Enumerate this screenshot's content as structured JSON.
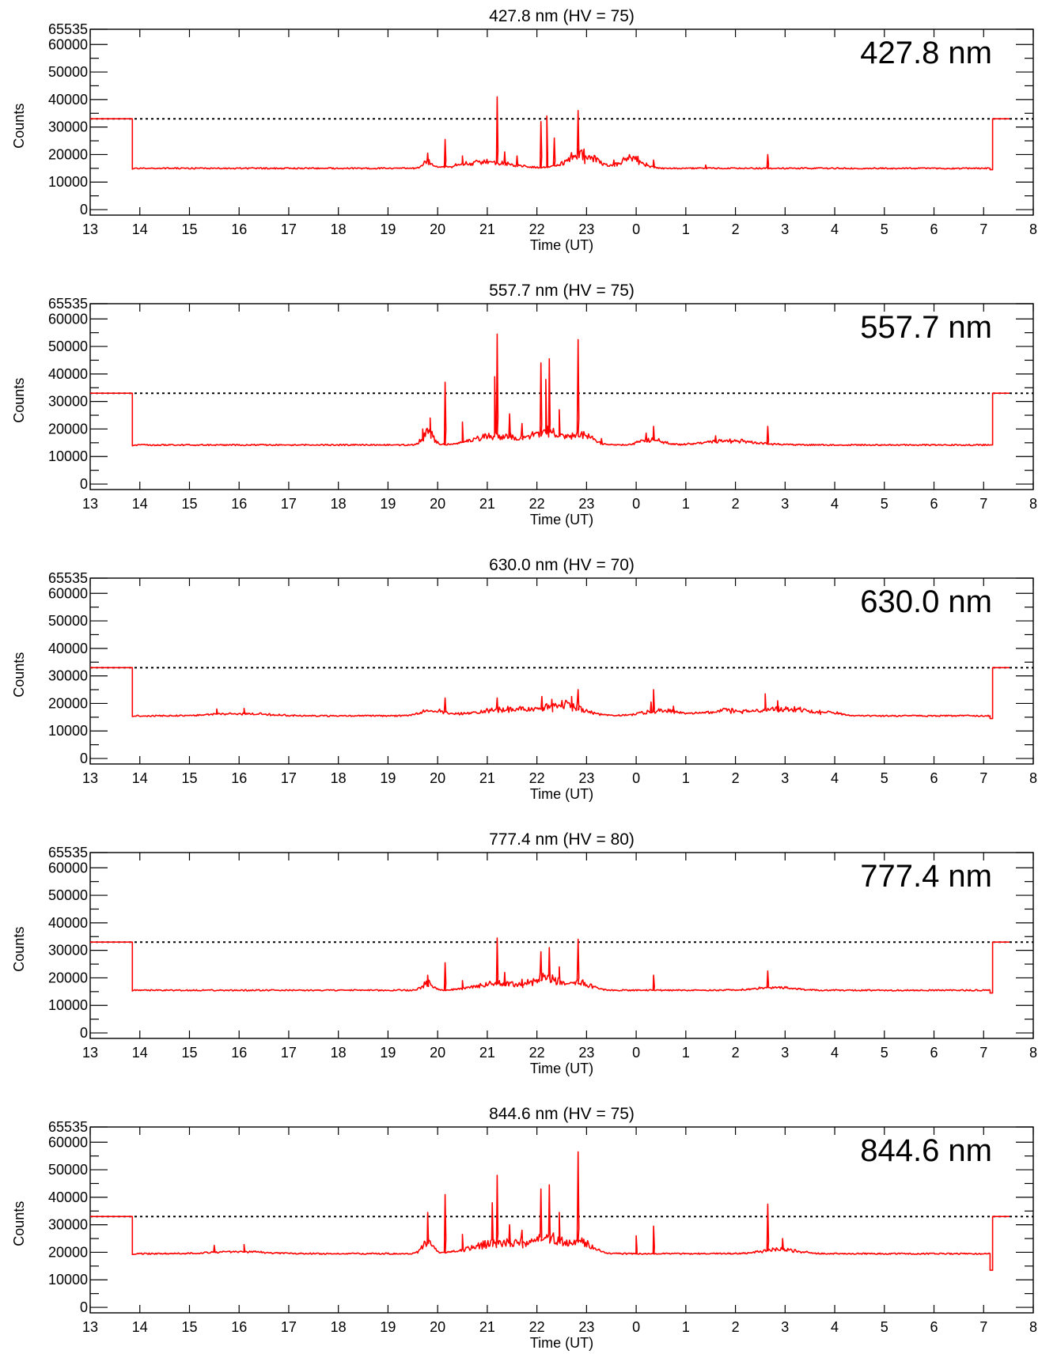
{
  "chart_data": [
    {
      "type": "line",
      "title": "427.8 nm (HV = 75)",
      "label": "427.8 nm",
      "xlabel": "Time (UT)",
      "ylabel": "Counts",
      "x_tick_labels": [
        "13",
        "14",
        "15",
        "16",
        "17",
        "18",
        "19",
        "20",
        "21",
        "22",
        "23",
        "0",
        "1",
        "2",
        "3",
        "4",
        "5",
        "6",
        "7",
        "8"
      ],
      "y_tick_values": [
        0,
        10000,
        20000,
        30000,
        40000,
        50000,
        60000,
        65535
      ],
      "y_tick_labels": [
        "0",
        "10000",
        "20000",
        "30000",
        "40000",
        "50000",
        "60000",
        "65535"
      ],
      "xlim_hours_since_13UT": [
        0,
        19
      ],
      "ylim": [
        -2000,
        65535
      ],
      "threshold": 33000,
      "series_color": "#ff0000",
      "baseline": 15000,
      "data_start": 0.85,
      "data_end": 18.18,
      "edge_level": 33000,
      "end_dip": 14500,
      "bumps": [
        {
          "x": 6.8,
          "w": 0.12,
          "v": 2500
        },
        {
          "x": 8.0,
          "w": 0.7,
          "v": 2300
        },
        {
          "x": 9.9,
          "w": 0.4,
          "v": 5000
        },
        {
          "x": 10.9,
          "w": 0.3,
          "v": 3500
        }
      ],
      "spikes": [
        {
          "x": 6.8,
          "v": 20500
        },
        {
          "x": 7.15,
          "v": 25500
        },
        {
          "x": 7.5,
          "v": 19500
        },
        {
          "x": 8.2,
          "v": 41000
        },
        {
          "x": 8.35,
          "v": 21000
        },
        {
          "x": 8.6,
          "v": 19500
        },
        {
          "x": 9.08,
          "v": 32000
        },
        {
          "x": 9.2,
          "v": 34000
        },
        {
          "x": 9.35,
          "v": 26000
        },
        {
          "x": 9.83,
          "v": 36000
        },
        {
          "x": 9.95,
          "v": 22000
        },
        {
          "x": 10.55,
          "v": 18000
        },
        {
          "x": 11.35,
          "v": 18000
        },
        {
          "x": 12.4,
          "v": 16200
        },
        {
          "x": 13.65,
          "v": 20000
        }
      ]
    },
    {
      "type": "line",
      "title": "557.7 nm (HV = 75)",
      "label": "557.7 nm",
      "xlabel": "Time (UT)",
      "ylabel": "Counts",
      "x_tick_labels": [
        "13",
        "14",
        "15",
        "16",
        "17",
        "18",
        "19",
        "20",
        "21",
        "22",
        "23",
        "0",
        "1",
        "2",
        "3",
        "4",
        "5",
        "6",
        "7",
        "8"
      ],
      "y_tick_values": [
        0,
        10000,
        20000,
        30000,
        40000,
        50000,
        60000,
        65535
      ],
      "y_tick_labels": [
        "0",
        "10000",
        "20000",
        "30000",
        "40000",
        "50000",
        "60000",
        "65535"
      ],
      "xlim_hours_since_13UT": [
        0,
        19
      ],
      "ylim": [
        -2000,
        65535
      ],
      "threshold": 33000,
      "series_color": "#ff0000",
      "baseline": 14200,
      "data_start": 0.85,
      "data_end": 18.18,
      "edge_level": 33000,
      "end_dip": 14200,
      "bumps": [
        {
          "x": 6.8,
          "w": 0.15,
          "v": 4500
        },
        {
          "x": 8.2,
          "w": 0.6,
          "v": 3500
        },
        {
          "x": 9.2,
          "w": 0.4,
          "v": 4500
        },
        {
          "x": 9.9,
          "w": 0.3,
          "v": 3500
        },
        {
          "x": 11.3,
          "w": 0.3,
          "v": 2000
        },
        {
          "x": 12.9,
          "w": 0.7,
          "v": 1500
        }
      ],
      "spikes": [
        {
          "x": 6.7,
          "v": 20000
        },
        {
          "x": 6.85,
          "v": 24000
        },
        {
          "x": 7.15,
          "v": 37000
        },
        {
          "x": 7.5,
          "v": 22500
        },
        {
          "x": 8.15,
          "v": 39000
        },
        {
          "x": 8.2,
          "v": 54500
        },
        {
          "x": 8.45,
          "v": 25500
        },
        {
          "x": 8.7,
          "v": 22000
        },
        {
          "x": 9.08,
          "v": 44000
        },
        {
          "x": 9.18,
          "v": 38000
        },
        {
          "x": 9.25,
          "v": 45500
        },
        {
          "x": 9.45,
          "v": 27000
        },
        {
          "x": 9.83,
          "v": 52500
        },
        {
          "x": 10.3,
          "v": 16500
        },
        {
          "x": 11.2,
          "v": 18500
        },
        {
          "x": 11.35,
          "v": 21000
        },
        {
          "x": 12.6,
          "v": 17500
        },
        {
          "x": 13.65,
          "v": 21000
        }
      ]
    },
    {
      "type": "line",
      "title": "630.0 nm (HV = 70)",
      "label": "630.0 nm",
      "xlabel": "Time (UT)",
      "ylabel": "Counts",
      "x_tick_labels": [
        "13",
        "14",
        "15",
        "16",
        "17",
        "18",
        "19",
        "20",
        "21",
        "22",
        "23",
        "0",
        "1",
        "2",
        "3",
        "4",
        "5",
        "6",
        "7",
        "8"
      ],
      "y_tick_values": [
        0,
        10000,
        20000,
        30000,
        40000,
        50000,
        60000,
        65535
      ],
      "y_tick_labels": [
        "0",
        "10000",
        "20000",
        "30000",
        "40000",
        "50000",
        "60000",
        "65535"
      ],
      "xlim_hours_since_13UT": [
        0,
        19
      ],
      "ylim": [
        -2000,
        65535
      ],
      "threshold": 33000,
      "series_color": "#ff0000",
      "baseline": 15500,
      "data_start": 0.85,
      "data_end": 18.18,
      "edge_level": 33000,
      "end_dip": 14500,
      "bumps": [
        {
          "x": 3.0,
          "w": 0.8,
          "v": 800
        },
        {
          "x": 6.9,
          "w": 0.3,
          "v": 2000
        },
        {
          "x": 8.5,
          "w": 0.9,
          "v": 2500
        },
        {
          "x": 9.6,
          "w": 0.5,
          "v": 3500
        },
        {
          "x": 11.5,
          "w": 0.5,
          "v": 2000
        },
        {
          "x": 12.8,
          "w": 0.6,
          "v": 1800
        },
        {
          "x": 14.0,
          "w": 0.6,
          "v": 2800
        },
        {
          "x": 14.9,
          "w": 0.3,
          "v": 1000
        }
      ],
      "spikes": [
        {
          "x": 2.55,
          "v": 18000
        },
        {
          "x": 3.1,
          "v": 18200
        },
        {
          "x": 7.15,
          "v": 22000
        },
        {
          "x": 8.2,
          "v": 22000
        },
        {
          "x": 9.1,
          "v": 22500
        },
        {
          "x": 9.3,
          "v": 21500
        },
        {
          "x": 9.7,
          "v": 22500
        },
        {
          "x": 9.83,
          "v": 25000
        },
        {
          "x": 11.3,
          "v": 20500
        },
        {
          "x": 11.35,
          "v": 25000
        },
        {
          "x": 11.75,
          "v": 19000
        },
        {
          "x": 13.6,
          "v": 23500
        },
        {
          "x": 13.85,
          "v": 21000
        },
        {
          "x": 14.7,
          "v": 17500
        }
      ]
    },
    {
      "type": "line",
      "title": "777.4 nm (HV = 80)",
      "label": "777.4 nm",
      "xlabel": "Time (UT)",
      "ylabel": "Counts",
      "x_tick_labels": [
        "13",
        "14",
        "15",
        "16",
        "17",
        "18",
        "19",
        "20",
        "21",
        "22",
        "23",
        "0",
        "1",
        "2",
        "3",
        "4",
        "5",
        "6",
        "7",
        "8"
      ],
      "y_tick_values": [
        0,
        10000,
        20000,
        30000,
        40000,
        50000,
        60000,
        65535
      ],
      "y_tick_labels": [
        "0",
        "10000",
        "20000",
        "30000",
        "40000",
        "50000",
        "60000",
        "65535"
      ],
      "xlim_hours_since_13UT": [
        0,
        19
      ],
      "ylim": [
        -2000,
        65535
      ],
      "threshold": 33000,
      "series_color": "#ff0000",
      "baseline": 15500,
      "data_start": 0.85,
      "data_end": 18.18,
      "edge_level": 33000,
      "end_dip": 14500,
      "bumps": [
        {
          "x": 6.8,
          "w": 0.15,
          "v": 2500
        },
        {
          "x": 8.2,
          "w": 0.6,
          "v": 2500
        },
        {
          "x": 9.2,
          "w": 0.4,
          "v": 4500
        },
        {
          "x": 9.9,
          "w": 0.3,
          "v": 2500
        },
        {
          "x": 13.8,
          "w": 0.5,
          "v": 1000
        }
      ],
      "spikes": [
        {
          "x": 6.8,
          "v": 21000
        },
        {
          "x": 7.15,
          "v": 25500
        },
        {
          "x": 7.5,
          "v": 19000
        },
        {
          "x": 8.2,
          "v": 34500
        },
        {
          "x": 8.35,
          "v": 22000
        },
        {
          "x": 8.7,
          "v": 19500
        },
        {
          "x": 9.08,
          "v": 29500
        },
        {
          "x": 9.25,
          "v": 31000
        },
        {
          "x": 9.45,
          "v": 24000
        },
        {
          "x": 9.83,
          "v": 34000
        },
        {
          "x": 11.35,
          "v": 21000
        },
        {
          "x": 13.65,
          "v": 22500
        }
      ]
    },
    {
      "type": "line",
      "title": "844.6 nm (HV = 75)",
      "label": "844.6 nm",
      "xlabel": "Time (UT)",
      "ylabel": "Counts",
      "x_tick_labels": [
        "13",
        "14",
        "15",
        "16",
        "17",
        "18",
        "19",
        "20",
        "21",
        "22",
        "23",
        "0",
        "1",
        "2",
        "3",
        "4",
        "5",
        "6",
        "7",
        "8"
      ],
      "y_tick_values": [
        0,
        10000,
        20000,
        30000,
        40000,
        50000,
        60000,
        65535
      ],
      "y_tick_labels": [
        "0",
        "10000",
        "20000",
        "30000",
        "40000",
        "50000",
        "60000",
        "65535"
      ],
      "xlim_hours_since_13UT": [
        0,
        19
      ],
      "ylim": [
        -2000,
        65535
      ],
      "threshold": 33000,
      "series_color": "#ff0000",
      "baseline": 19500,
      "data_start": 0.85,
      "data_end": 18.18,
      "edge_level": 33000,
      "end_dip": 13500,
      "bumps": [
        {
          "x": 3.0,
          "w": 0.8,
          "v": 700
        },
        {
          "x": 6.8,
          "w": 0.15,
          "v": 4000
        },
        {
          "x": 8.3,
          "w": 0.8,
          "v": 4000
        },
        {
          "x": 9.3,
          "w": 0.5,
          "v": 4500
        },
        {
          "x": 9.95,
          "w": 0.3,
          "v": 3000
        },
        {
          "x": 13.9,
          "w": 0.5,
          "v": 1500
        }
      ],
      "spikes": [
        {
          "x": 2.5,
          "v": 22500
        },
        {
          "x": 3.1,
          "v": 22800
        },
        {
          "x": 6.8,
          "v": 34500
        },
        {
          "x": 7.15,
          "v": 41000
        },
        {
          "x": 7.5,
          "v": 26500
        },
        {
          "x": 8.1,
          "v": 38000
        },
        {
          "x": 8.2,
          "v": 48000
        },
        {
          "x": 8.45,
          "v": 30000
        },
        {
          "x": 8.7,
          "v": 28000
        },
        {
          "x": 9.08,
          "v": 43000
        },
        {
          "x": 9.25,
          "v": 44500
        },
        {
          "x": 9.45,
          "v": 34500
        },
        {
          "x": 9.83,
          "v": 56500
        },
        {
          "x": 11.0,
          "v": 26000
        },
        {
          "x": 11.35,
          "v": 29500
        },
        {
          "x": 13.65,
          "v": 37500
        },
        {
          "x": 13.95,
          "v": 25000
        }
      ]
    }
  ]
}
